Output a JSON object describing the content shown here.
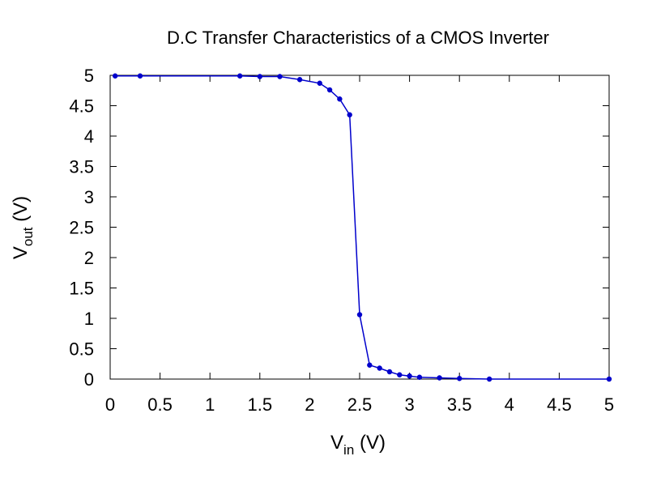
{
  "chart_data": {
    "type": "line",
    "title": "D.C Transfer Characteristics of a CMOS Inverter",
    "xlabel": {
      "main": "V",
      "sub": "in",
      "unit": " (V)"
    },
    "ylabel": {
      "main": "V",
      "sub": "out",
      "unit": " (V)"
    },
    "xlim": [
      0,
      5
    ],
    "ylim": [
      0,
      5
    ],
    "x_ticks": [
      "0",
      "0.5",
      "1",
      "1.5",
      "2",
      "2.5",
      "3",
      "3.5",
      "4",
      "4.5",
      "5"
    ],
    "y_ticks": [
      "0",
      "0.5",
      "1",
      "1.5",
      "2",
      "2.5",
      "3",
      "3.5",
      "4",
      "4.5",
      "5"
    ],
    "grid": false,
    "legend": "none",
    "series": [
      {
        "color": "#0000cc",
        "x": [
          0.05,
          0.3,
          1.3,
          1.5,
          1.7,
          1.9,
          2.1,
          2.2,
          2.3,
          2.4,
          2.5,
          2.6,
          2.7,
          2.8,
          2.9,
          3.0,
          3.1,
          3.3,
          3.5,
          3.8,
          5.0
        ],
        "y": [
          4.99,
          4.99,
          4.99,
          4.98,
          4.98,
          4.93,
          4.87,
          4.76,
          4.61,
          4.35,
          1.06,
          0.23,
          0.18,
          0.12,
          0.07,
          0.05,
          0.03,
          0.02,
          0.01,
          0.0,
          0.0
        ]
      }
    ]
  }
}
